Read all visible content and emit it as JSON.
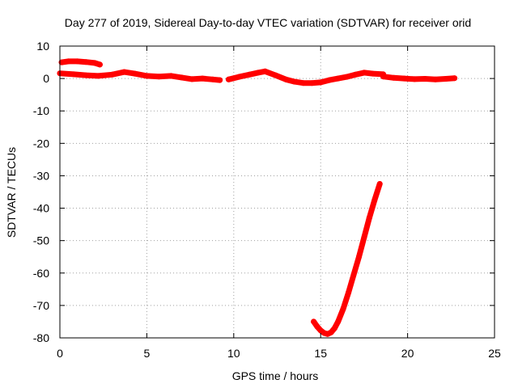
{
  "chart_data": {
    "type": "scatter",
    "title": "Day 277 of 2019, Sidereal Day-to-day VTEC variation (SDTVAR) for receiver orid",
    "xlabel": "GPS time / hours",
    "ylabel": "SDTVAR / TECUs",
    "xlim": [
      0,
      25
    ],
    "ylim": [
      -80,
      10
    ],
    "xticks": [
      0,
      5,
      10,
      15,
      20,
      25
    ],
    "yticks": [
      10,
      0,
      -10,
      -20,
      -30,
      -40,
      -50,
      -60,
      -70,
      -80
    ],
    "grid": true,
    "color": "#ff0000",
    "series": [
      {
        "x": [
          0.1,
          0.5,
          1.0,
          1.5,
          2.0,
          2.3
        ],
        "y": [
          5.0,
          5.3,
          5.3,
          5.1,
          4.8,
          4.3
        ]
      },
      {
        "x": [
          0.0,
          0.8,
          1.5,
          2.2,
          3.0,
          3.7,
          4.3,
          5.0,
          5.7,
          6.4,
          7.0,
          7.6,
          8.2,
          8.8,
          9.2
        ],
        "y": [
          1.6,
          1.3,
          1.0,
          0.8,
          1.2,
          2.0,
          1.5,
          0.8,
          0.6,
          0.8,
          0.3,
          -0.2,
          0.0,
          -0.3,
          -0.5
        ]
      },
      {
        "x": [
          9.7,
          10.3,
          10.9,
          11.4,
          11.8,
          12.4,
          13.0,
          13.5,
          14.0,
          14.5,
          15.0,
          15.5,
          16.0,
          16.5,
          17.0,
          17.5,
          18.0,
          18.6
        ],
        "y": [
          -0.3,
          0.5,
          1.2,
          1.8,
          2.2,
          1.0,
          -0.3,
          -1.0,
          -1.4,
          -1.4,
          -1.2,
          -0.5,
          0.0,
          0.5,
          1.2,
          1.8,
          1.5,
          1.3
        ]
      },
      {
        "x": [
          18.6,
          19.2,
          19.8,
          20.4,
          21.0,
          21.6,
          22.2,
          22.7
        ],
        "y": [
          0.6,
          0.2,
          0.0,
          -0.2,
          -0.1,
          -0.3,
          -0.1,
          0.1
        ]
      },
      {
        "x": [
          14.6,
          14.8,
          15.0,
          15.2,
          15.4,
          15.6,
          15.8,
          16.0,
          16.3,
          16.6,
          16.9,
          17.2,
          17.5,
          17.8,
          18.1,
          18.4
        ],
        "y": [
          -75.0,
          -76.5,
          -77.7,
          -78.5,
          -78.8,
          -78.3,
          -77.0,
          -75.0,
          -71.0,
          -66.0,
          -60.5,
          -55.0,
          -49.0,
          -43.0,
          -37.5,
          -32.5
        ]
      }
    ]
  }
}
